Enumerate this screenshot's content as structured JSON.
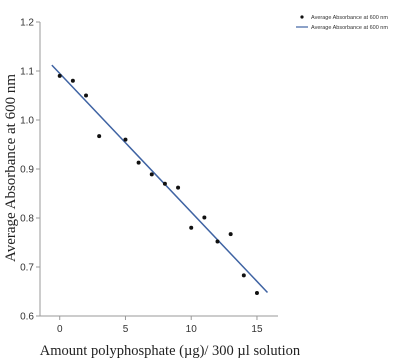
{
  "chart_data": {
    "type": "scatter",
    "xlabel": "Amount polyphosphate (µg)/ 300 µl solution",
    "ylabel": "Average Absorbance at 600 nm",
    "xlim": [
      -1.5,
      16.6
    ],
    "ylim": [
      0.6,
      1.2
    ],
    "x_ticks": [
      "0",
      "5",
      "10",
      "15"
    ],
    "x_tick_values": [
      0,
      5,
      10,
      15
    ],
    "y_ticks": [
      "0.6",
      "0.7",
      "0.8",
      "0.9",
      "1.0",
      "1.1",
      "1.2"
    ],
    "y_tick_values": [
      0.6,
      0.7,
      0.8,
      0.9,
      1.0,
      1.1,
      1.2
    ],
    "legend_position": "top-right",
    "colors": {
      "points": "#111111",
      "fit_line": "#3f63a3",
      "axis": "#999999"
    },
    "series": [
      {
        "name": "Average Absorbance at 600 nm",
        "kind": "points",
        "points": [
          {
            "x": 0,
            "y": 1.09
          },
          {
            "x": 1,
            "y": 1.08
          },
          {
            "x": 2,
            "y": 1.05
          },
          {
            "x": 3,
            "y": 0.967
          },
          {
            "x": 5,
            "y": 0.96
          },
          {
            "x": 6,
            "y": 0.913
          },
          {
            "x": 7,
            "y": 0.889
          },
          {
            "x": 8,
            "y": 0.87
          },
          {
            "x": 9,
            "y": 0.862
          },
          {
            "x": 10,
            "y": 0.78
          },
          {
            "x": 11,
            "y": 0.801
          },
          {
            "x": 12,
            "y": 0.752
          },
          {
            "x": 13,
            "y": 0.767
          },
          {
            "x": 14,
            "y": 0.683
          },
          {
            "x": 15,
            "y": 0.647
          }
        ]
      },
      {
        "name": "Average Absorbance at 600 nm",
        "kind": "line",
        "points": [
          {
            "x": -0.6,
            "y": 1.112
          },
          {
            "x": 15.8,
            "y": 0.648
          }
        ]
      }
    ]
  }
}
